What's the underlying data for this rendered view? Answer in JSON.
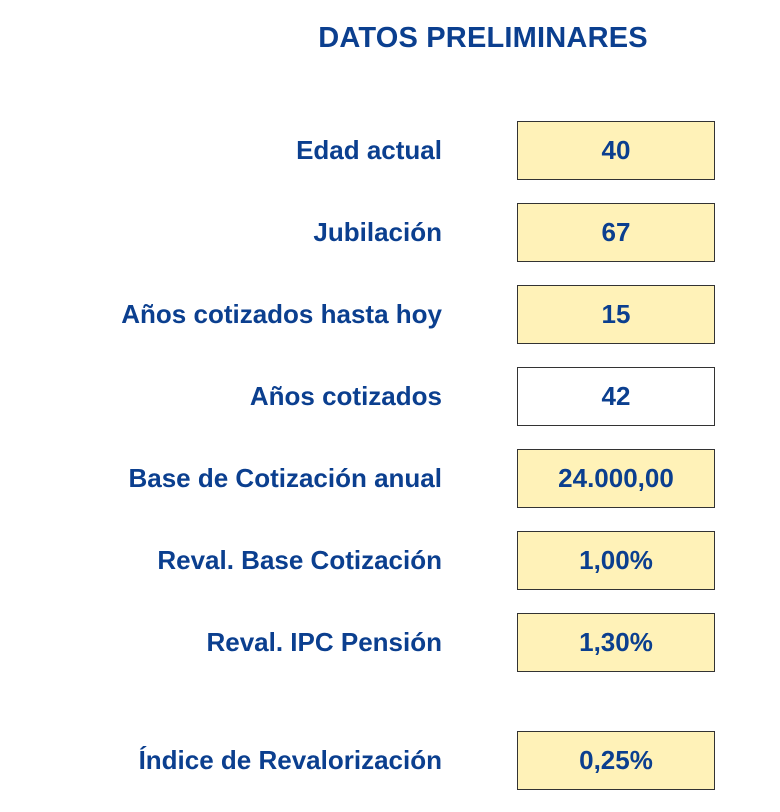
{
  "title": "DATOS PRELIMINARES",
  "colors": {
    "text": "#0b3f8f",
    "input_cell_bg": "#fff2b8",
    "computed_cell_bg": "#ffffff",
    "border": "#333333"
  },
  "rows": [
    {
      "label": "Edad actual",
      "value": "40"
    },
    {
      "label": "Jubilación",
      "value": "67"
    },
    {
      "label": "Años cotizados hasta hoy",
      "value": "15"
    },
    {
      "label": "Años cotizados",
      "value": "42"
    },
    {
      "label": "Base de Cotización anual",
      "value": "24.000,00"
    },
    {
      "label": "Reval. Base Cotización",
      "value": "1,00%"
    },
    {
      "label": "Reval. IPC Pensión",
      "value": "1,30%"
    },
    {
      "label": "Índice de Revalorización",
      "value": "0,25%"
    }
  ]
}
